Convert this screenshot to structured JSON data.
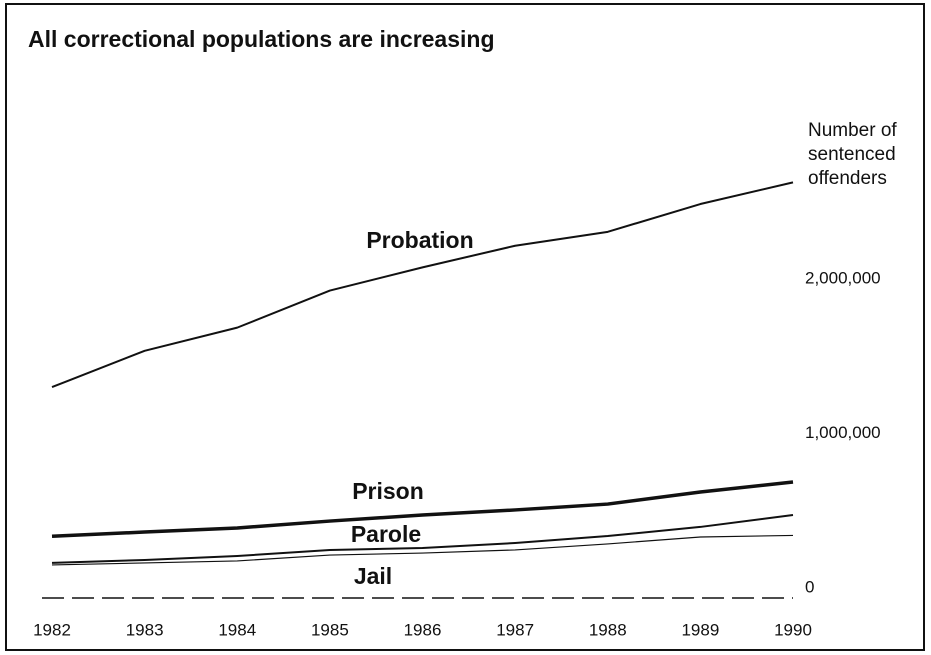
{
  "chart_data": {
    "type": "line",
    "title": "All correctional populations are increasing",
    "ylabel_lines": [
      "Number of",
      "sentenced",
      "offenders"
    ],
    "x": [
      1982,
      1983,
      1984,
      1985,
      1986,
      1987,
      1988,
      1989,
      1990
    ],
    "xlim": [
      1982,
      1990
    ],
    "xticks": [
      1982,
      1983,
      1984,
      1985,
      1986,
      1987,
      1988,
      1989,
      1990
    ],
    "ylim": [
      0,
      3000000
    ],
    "yticks": [
      0,
      {
        "value": 1000000,
        "label": "1,000,000"
      },
      {
        "value": 2000000,
        "label": "2,000,000"
      }
    ],
    "grid": false,
    "series": [
      {
        "name": "Probation",
        "color": "#111111",
        "line_width": 2,
        "values": [
          1365000,
          1600000,
          1750000,
          1990000,
          2140000,
          2280000,
          2370000,
          2550000,
          2690000
        ]
      },
      {
        "name": "Prison",
        "color": "#111111",
        "line_width": 3.5,
        "values": [
          400000,
          427000,
          453000,
          498000,
          537000,
          570000,
          608000,
          686000,
          751000
        ]
      },
      {
        "name": "Parole",
        "color": "#111111",
        "line_width": 2,
        "values": [
          227000,
          246000,
          272000,
          311000,
          324000,
          356000,
          401000,
          460000,
          537000
        ]
      },
      {
        "name": "Jail",
        "color": "#111111",
        "line_width": 1.2,
        "values": [
          214000,
          227000,
          240000,
          278000,
          291000,
          311000,
          350000,
          395000,
          405000
        ]
      }
    ]
  }
}
